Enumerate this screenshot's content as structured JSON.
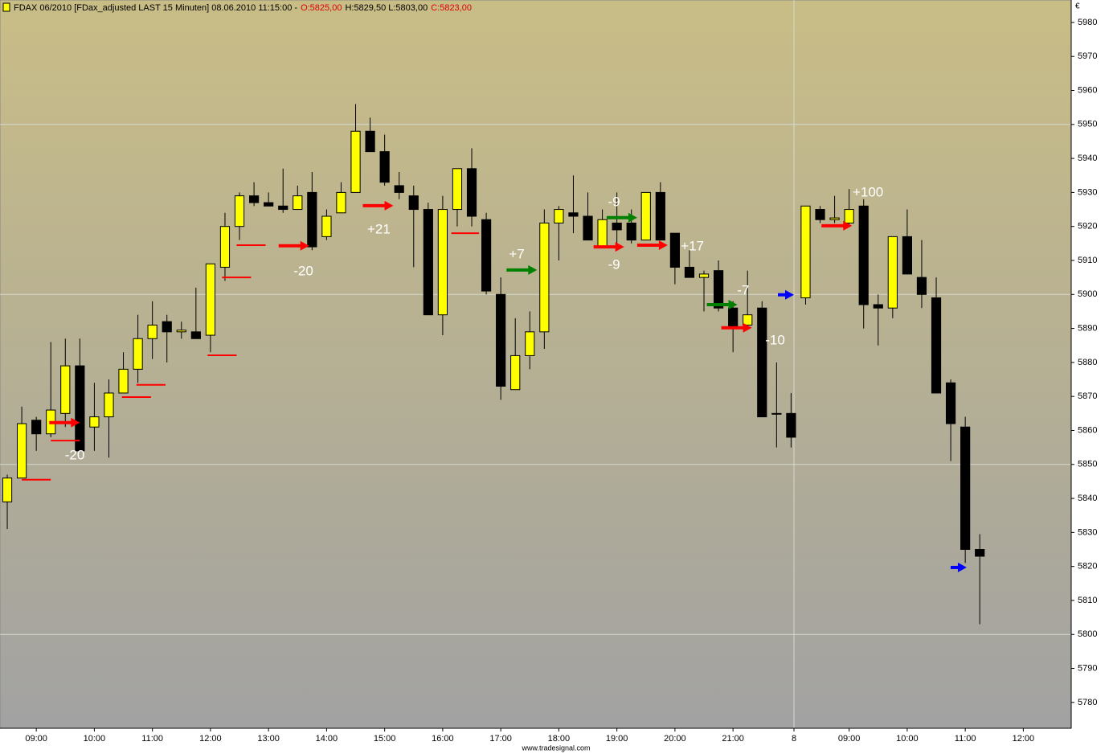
{
  "chart_data": {
    "type": "candlestick",
    "title": "FDAX 06/2010 [FDax_adjusted LAST 15 Minuten] 08.06.2010 11:15:00 -",
    "ohlc_labels": [
      {
        "text": "O:5825,00",
        "color": "#e00000"
      },
      {
        "text": "H:5829,50 L:5803,00",
        "color": "#000000"
      },
      {
        "text": "C:5823,00",
        "color": "#e00000"
      }
    ],
    "y_unit": "€",
    "source": "www.tradesignal.com",
    "up_color": "#ffff00",
    "down_color": "#000000",
    "x": [
      0,
      1,
      2,
      3,
      4,
      5,
      6,
      7,
      8,
      9,
      10,
      11,
      12,
      13,
      14,
      15,
      16,
      17,
      18,
      19,
      20,
      21,
      22,
      23,
      24,
      25,
      26,
      27,
      28,
      29,
      30,
      31,
      32,
      33,
      34,
      35,
      36,
      37,
      38,
      39,
      40,
      41,
      42,
      43,
      44,
      45,
      46,
      47,
      48,
      49,
      50,
      51,
      52,
      53,
      54,
      55,
      56,
      57,
      58,
      59,
      60,
      61,
      62,
      63,
      64,
      65,
      66,
      67
    ],
    "open": [
      5839,
      5846,
      5863,
      5859,
      5865,
      5879,
      5861,
      5864,
      5871,
      5878,
      5887,
      5892,
      5889,
      5889,
      5888,
      5908,
      5920,
      5929,
      5927,
      5926,
      5925,
      5930,
      5917,
      5924,
      5930,
      5948,
      5942,
      5932,
      5929,
      5925,
      5894,
      5925,
      5937,
      5922,
      5900,
      5872,
      5882,
      5889,
      5921,
      5924,
      5923,
      5914,
      5921,
      5921,
      5916,
      5930,
      5918,
      5908,
      5905,
      5907,
      5896,
      5891,
      5896,
      5865,
      5865,
      5899,
      5925,
      5922,
      5921,
      5926,
      5897,
      5896,
      5917,
      5905,
      5899,
      5874,
      5861,
      5825
    ],
    "high": [
      5847,
      5867,
      5864,
      5886,
      5887,
      5887,
      5874,
      5875,
      5883,
      5894,
      5898,
      5894,
      5892,
      5902,
      5909,
      5924,
      5930,
      5933,
      5930,
      5937,
      5932,
      5936,
      5925,
      5933,
      5956,
      5952,
      5947,
      5936,
      5932,
      5927,
      5929,
      5937,
      5943,
      5924,
      5905,
      5893,
      5895,
      5925,
      5926,
      5935,
      5930,
      5925,
      5930,
      5925,
      5930,
      5933,
      5918,
      5913,
      5907,
      5910,
      5898,
      5907,
      5898,
      5880,
      5871,
      5926,
      5926,
      5929,
      5931,
      5928,
      5900,
      5917,
      5925,
      5916,
      5905,
      5875,
      5864,
      5829.5
    ],
    "low": [
      5831,
      5846,
      5854,
      5858,
      5861,
      5854,
      5854,
      5852,
      5871,
      5874,
      5881,
      5880,
      5887,
      5887,
      5883,
      5904,
      5916,
      5926,
      5926,
      5924,
      5925,
      5913,
      5916,
      5924,
      5930,
      5942,
      5932,
      5928,
      5908,
      5894,
      5888,
      5920,
      5920,
      5900,
      5869,
      5872,
      5878,
      5884,
      5910,
      5918,
      5916,
      5914,
      5915,
      5915,
      5916,
      5916,
      5903,
      5905,
      5895,
      5895,
      5883,
      5891,
      5864,
      5855,
      5855,
      5897,
      5921,
      5921,
      5920,
      5890,
      5885,
      5893,
      5906,
      5896,
      5871,
      5851,
      5821,
      5803
    ],
    "close": [
      5846,
      5862,
      5859,
      5866,
      5879,
      5854,
      5864,
      5871,
      5878,
      5887,
      5891,
      5889,
      5889.5,
      5887,
      5909,
      5920,
      5929,
      5927,
      5926,
      5925,
      5929,
      5914,
      5923,
      5930,
      5948,
      5942,
      5933,
      5930,
      5925,
      5894,
      5925,
      5937,
      5923,
      5901,
      5873,
      5882,
      5889,
      5921,
      5925,
      5923,
      5916,
      5922,
      5919,
      5916,
      5930,
      5916,
      5908,
      5905,
      5906,
      5896,
      5890,
      5894,
      5864,
      5865,
      5858,
      5926,
      5922,
      5922.5,
      5925,
      5897,
      5896,
      5917,
      5906,
      5900,
      5871,
      5862,
      5825,
      5823
    ],
    "xlim": [
      -0.5,
      73.3
    ],
    "ylim": [
      5772.4,
      5986.6
    ],
    "xticks": [
      {
        "value": 2,
        "label": "09:00"
      },
      {
        "value": 6,
        "label": "10:00"
      },
      {
        "value": 10,
        "label": "11:00"
      },
      {
        "value": 14,
        "label": "12:00"
      },
      {
        "value": 18,
        "label": "13:00"
      },
      {
        "value": 22,
        "label": "14:00"
      },
      {
        "value": 26,
        "label": "15:00"
      },
      {
        "value": 30,
        "label": "16:00"
      },
      {
        "value": 34,
        "label": "17:00"
      },
      {
        "value": 38,
        "label": "18:00"
      },
      {
        "value": 42,
        "label": "19:00"
      },
      {
        "value": 46,
        "label": "20:00"
      },
      {
        "value": 50,
        "label": "21:00"
      },
      {
        "value": 54.2,
        "label": "8"
      },
      {
        "value": 58,
        "label": "09:00"
      },
      {
        "value": 62,
        "label": "10:00"
      },
      {
        "value": 66,
        "label": "11:00"
      },
      {
        "value": 70,
        "label": "12:00"
      }
    ],
    "yticks": [
      5780,
      5790,
      5800,
      5810,
      5820,
      5830,
      5840,
      5850,
      5860,
      5870,
      5880,
      5890,
      5900,
      5910,
      5920,
      5930,
      5940,
      5950,
      5960,
      5970,
      5980
    ],
    "ygrid": [
      5800,
      5850,
      5900,
      5950
    ],
    "xgrid": [
      54.2
    ],
    "signals": [
      {
        "x": 5.0,
        "y": 5862.3,
        "color": "#ff0000"
      },
      {
        "x": 20.8,
        "y": 5914.3,
        "color": "#ff0000"
      },
      {
        "x": 26.6,
        "y": 5926.1,
        "color": "#ff0000"
      },
      {
        "x": 36.5,
        "y": 5907.2,
        "color": "#008000"
      },
      {
        "x": 42.5,
        "y": 5914.0,
        "color": "#ff0000"
      },
      {
        "x": 43.4,
        "y": 5922.6,
        "color": "#008000"
      },
      {
        "x": 45.5,
        "y": 5914.5,
        "color": "#ff0000"
      },
      {
        "x": 50.3,
        "y": 5897.0,
        "color": "#008000"
      },
      {
        "x": 51.3,
        "y": 5890.2,
        "color": "#ff0000"
      },
      {
        "x": 54.2,
        "y": 5899.9,
        "color": "#0000ff"
      },
      {
        "x": 58.2,
        "y": 5920.2,
        "color": "#ff0000"
      },
      {
        "x": 66.1,
        "y": 5819.7,
        "color": "#0000ff"
      }
    ],
    "stops": [
      {
        "x": [
          1.0,
          3.0
        ],
        "y": 5845.5
      },
      {
        "x": [
          3.0,
          5.0
        ],
        "y": 5857
      },
      {
        "x": [
          7.9,
          9.9
        ],
        "y": 5869.8
      },
      {
        "x": [
          8.9,
          10.9
        ],
        "y": 5873.4
      },
      {
        "x": [
          13.8,
          15.8
        ],
        "y": 5882.1
      },
      {
        "x": [
          14.8,
          16.8
        ],
        "y": 5905
      },
      {
        "x": [
          15.8,
          17.8
        ],
        "y": 5914.5
      },
      {
        "x": [
          30.6,
          32.5
        ],
        "y": 5918
      }
    ],
    "annotations": [
      {
        "text": "-20",
        "x": 4.65,
        "y": 5852.6
      },
      {
        "text": "-20",
        "x": 20.4,
        "y": 5906.7
      },
      {
        "text": "+21",
        "x": 25.6,
        "y": 5919
      },
      {
        "text": "+7",
        "x": 35.1,
        "y": 5911.7
      },
      {
        "text": "-9",
        "x": 41.8,
        "y": 5927
      },
      {
        "text": "-9",
        "x": 41.8,
        "y": 5908.6
      },
      {
        "text": "+17",
        "x": 47.2,
        "y": 5914
      },
      {
        "text": "-7",
        "x": 50.7,
        "y": 5901
      },
      {
        "text": "-10",
        "x": 52.9,
        "y": 5886.4
      },
      {
        "text": "+100",
        "x": 59.3,
        "y": 5929.9
      }
    ]
  }
}
